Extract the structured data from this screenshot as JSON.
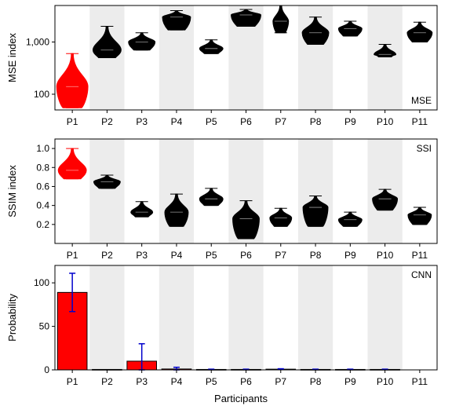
{
  "figure": {
    "xlabel": "Participants",
    "categories": [
      "P1",
      "P2",
      "P3",
      "P4",
      "P5",
      "P6",
      "P7",
      "P8",
      "P9",
      "P10",
      "P11"
    ],
    "shaded_categories": [
      "P2",
      "P4",
      "P6",
      "P8",
      "P10"
    ],
    "highlight_category": "P1",
    "colors": {
      "highlight": "#ff0000",
      "default": "#000000",
      "shade": "#ececec",
      "errorbar": "#0000cc"
    }
  },
  "chart_data": [
    {
      "type": "violin",
      "panel_label": "MSE",
      "ylabel": "MSE index",
      "yscale": "log",
      "ylim": [
        50,
        5000
      ],
      "yticks": [
        100,
        1000
      ],
      "ytick_labels": [
        "100",
        "1,000"
      ],
      "series": [
        {
          "category": "P1",
          "min": 55,
          "max": 600,
          "median": 140,
          "spread": 1.0
        },
        {
          "category": "P2",
          "min": 500,
          "max": 2000,
          "median": 700,
          "spread": 0.9
        },
        {
          "category": "P3",
          "min": 700,
          "max": 1500,
          "median": 1000,
          "spread": 0.85
        },
        {
          "category": "P4",
          "min": 1700,
          "max": 4000,
          "median": 3000,
          "spread": 0.9
        },
        {
          "category": "P5",
          "min": 600,
          "max": 1100,
          "median": 750,
          "spread": 0.75
        },
        {
          "category": "P6",
          "min": 2000,
          "max": 4200,
          "median": 3300,
          "spread": 0.95
        },
        {
          "category": "P7",
          "min": 1500,
          "max": 5000,
          "median": 2500,
          "spread": 0.5
        },
        {
          "category": "P8",
          "min": 900,
          "max": 3000,
          "median": 1500,
          "spread": 0.85
        },
        {
          "category": "P9",
          "min": 1300,
          "max": 2500,
          "median": 1800,
          "spread": 0.75
        },
        {
          "category": "P10",
          "min": 520,
          "max": 900,
          "median": 580,
          "spread": 0.7
        },
        {
          "category": "P11",
          "min": 1000,
          "max": 2400,
          "median": 1500,
          "spread": 0.8
        }
      ]
    },
    {
      "type": "violin",
      "panel_label": "SSI",
      "ylabel": "SSIM index",
      "yscale": "linear",
      "ylim": [
        0,
        1.1
      ],
      "yticks": [
        0.2,
        0.4,
        0.6,
        0.8,
        1.0
      ],
      "ytick_labels": [
        "0.2",
        "0.4",
        "0.6",
        "0.8",
        "1.0"
      ],
      "series": [
        {
          "category": "P1",
          "min": 0.68,
          "max": 1.0,
          "median": 0.77,
          "spread": 0.9
        },
        {
          "category": "P2",
          "min": 0.58,
          "max": 0.72,
          "median": 0.65,
          "spread": 0.85
        },
        {
          "category": "P3",
          "min": 0.28,
          "max": 0.44,
          "median": 0.33,
          "spread": 0.7
        },
        {
          "category": "P4",
          "min": 0.18,
          "max": 0.52,
          "median": 0.33,
          "spread": 0.75
        },
        {
          "category": "P5",
          "min": 0.4,
          "max": 0.58,
          "median": 0.47,
          "spread": 0.75
        },
        {
          "category": "P6",
          "min": 0.05,
          "max": 0.45,
          "median": 0.26,
          "spread": 0.85
        },
        {
          "category": "P7",
          "min": 0.18,
          "max": 0.37,
          "median": 0.27,
          "spread": 0.7
        },
        {
          "category": "P8",
          "min": 0.18,
          "max": 0.5,
          "median": 0.38,
          "spread": 0.8
        },
        {
          "category": "P9",
          "min": 0.18,
          "max": 0.33,
          "median": 0.25,
          "spread": 0.75
        },
        {
          "category": "P10",
          "min": 0.35,
          "max": 0.57,
          "median": 0.47,
          "spread": 0.8
        },
        {
          "category": "P11",
          "min": 0.2,
          "max": 0.38,
          "median": 0.3,
          "spread": 0.75
        }
      ]
    },
    {
      "type": "bar",
      "panel_label": "CNN",
      "ylabel": "Probability",
      "ylim": [
        0,
        120
      ],
      "yticks": [
        0,
        50,
        100
      ],
      "ytick_labels": [
        "0",
        "50",
        "100"
      ],
      "categories": [
        "P1",
        "P2",
        "P3",
        "P4",
        "P5",
        "P6",
        "P7",
        "P8",
        "P9",
        "P10",
        "P11"
      ],
      "values": [
        89,
        0.5,
        10,
        1,
        0.5,
        0.5,
        0.8,
        0.5,
        0.5,
        0.5,
        0
      ],
      "error": [
        22,
        0,
        20,
        2,
        0.3,
        0.3,
        0.5,
        0.3,
        0.3,
        0.3,
        0
      ]
    }
  ]
}
